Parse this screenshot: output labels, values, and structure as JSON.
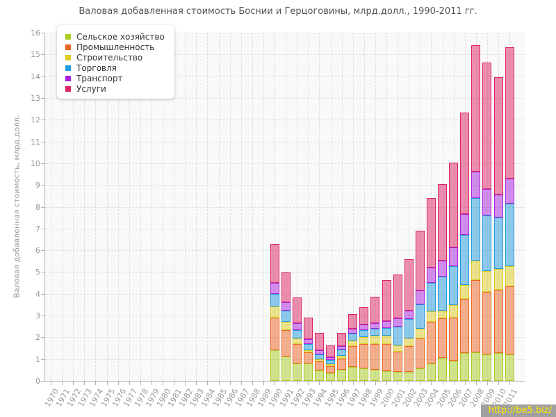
{
  "watermark": "http://be5.biz/",
  "chart_data": {
    "type": "bar",
    "stacked": true,
    "title": "Валовая добавленная стоимость Боснии и Герцоговины, млрд.долл., 1990-2011 гг.",
    "ylabel": "Валовая добавленная стоимость, млрд.долл.",
    "ylim": [
      0,
      16
    ],
    "ytick_step": 1,
    "grid": "dashed",
    "legend_position": "top-left",
    "axis_years": [
      "1970",
      "1971",
      "1972",
      "1973",
      "1974",
      "1975",
      "1976",
      "1977",
      "1978",
      "1979",
      "1980",
      "1981",
      "1982",
      "1983",
      "1984",
      "1985",
      "1986",
      "1987",
      "1988",
      "1989",
      "1990",
      "1991",
      "1992",
      "1993",
      "1994",
      "1995",
      "1996",
      "1997",
      "1998",
      "1999",
      "2000",
      "2001",
      "2002",
      "2003",
      "2004",
      "2005",
      "2006",
      "2007",
      "2008",
      "2009",
      "2010",
      "2011"
    ],
    "data_years": [
      "1990",
      "1991",
      "1992",
      "1993",
      "1994",
      "1995",
      "1996",
      "1997",
      "1998",
      "1999",
      "2000",
      "2001",
      "2002",
      "2003",
      "2004",
      "2005",
      "2006",
      "2007",
      "2008",
      "2009",
      "2010",
      "2011"
    ],
    "series": [
      {
        "name": "Сельское хозяйство",
        "color": "#aacc22",
        "values": [
          1.4,
          1.11,
          0.79,
          0.79,
          0.47,
          0.34,
          0.52,
          0.63,
          0.57,
          0.52,
          0.45,
          0.42,
          0.42,
          0.57,
          0.79,
          1.05,
          0.92,
          1.27,
          1.32,
          1.21,
          1.27,
          1.21
        ]
      },
      {
        "name": "Промышленность",
        "color": "#ee6622",
        "values": [
          1.52,
          1.22,
          0.9,
          0.51,
          0.42,
          0.32,
          0.5,
          0.96,
          1.12,
          1.17,
          1.24,
          0.93,
          1.17,
          1.39,
          1.91,
          1.81,
          2.0,
          2.5,
          3.3,
          2.88,
          2.92,
          3.14
        ]
      },
      {
        "name": "Строительство",
        "color": "#ddcc22",
        "values": [
          0.5,
          0.37,
          0.27,
          0.1,
          0.09,
          0.1,
          0.14,
          0.26,
          0.32,
          0.38,
          0.38,
          0.29,
          0.37,
          0.43,
          0.48,
          0.38,
          0.56,
          0.64,
          0.91,
          0.96,
          0.96,
          0.91
        ]
      },
      {
        "name": "Торговля",
        "color": "#2299dd",
        "values": [
          0.58,
          0.54,
          0.37,
          0.29,
          0.23,
          0.19,
          0.27,
          0.32,
          0.32,
          0.32,
          0.37,
          0.85,
          0.87,
          1.11,
          1.33,
          1.54,
          1.78,
          2.29,
          2.87,
          2.55,
          2.34,
          2.87
        ]
      },
      {
        "name": "Транспорт",
        "color": "#aa22dd",
        "values": [
          0.5,
          0.37,
          0.32,
          0.22,
          0.19,
          0.14,
          0.16,
          0.24,
          0.27,
          0.26,
          0.32,
          0.37,
          0.41,
          0.66,
          0.7,
          0.75,
          0.88,
          0.96,
          1.22,
          1.22,
          1.07,
          1.17
        ]
      },
      {
        "name": "Услуги",
        "color": "#dd2266",
        "values": [
          1.8,
          1.38,
          1.17,
          1.01,
          0.79,
          0.53,
          0.6,
          0.67,
          0.8,
          1.22,
          1.88,
          2.03,
          2.36,
          2.75,
          3.19,
          3.51,
          3.89,
          4.68,
          5.81,
          5.81,
          5.41,
          6.02
        ]
      }
    ]
  }
}
